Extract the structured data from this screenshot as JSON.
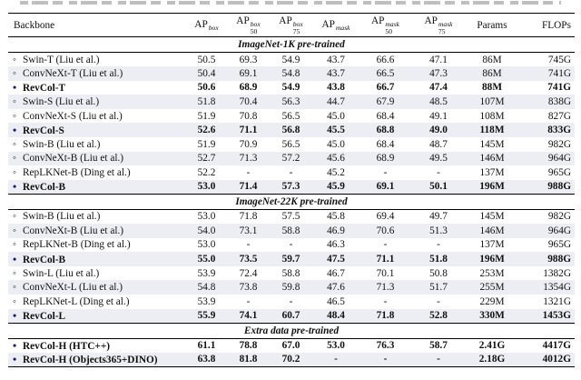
{
  "colors": {
    "row_shade": "#eceef3",
    "bullet_filled": "#15157e"
  },
  "table": {
    "columns": [
      {
        "label": "Backbone"
      },
      {
        "base": "AP",
        "sup": "box",
        "sub": ""
      },
      {
        "base": "AP",
        "sup": "box",
        "sub": "50"
      },
      {
        "base": "AP",
        "sup": "box",
        "sub": "75"
      },
      {
        "base": "AP",
        "sup": "mask",
        "sub": ""
      },
      {
        "base": "AP",
        "sup": "mask",
        "sub": "50"
      },
      {
        "base": "AP",
        "sup": "mask",
        "sub": "75"
      },
      {
        "label": "Params"
      },
      {
        "label": "FLOPs"
      }
    ],
    "sections": [
      {
        "title": "ImageNet-1K pre-trained",
        "rows": [
          {
            "bullet": "open",
            "highlight": false,
            "name": "Swin-T (Liu et al.)",
            "values": [
              "50.5",
              "69.3",
              "54.9",
              "43.7",
              "66.6",
              "47.1",
              "86M",
              "745G"
            ]
          },
          {
            "bullet": "open",
            "highlight": false,
            "name": "ConvNeXt-T (Liu et al.)",
            "values": [
              "50.4",
              "69.1",
              "54.8",
              "43.7",
              "66.5",
              "47.3",
              "86M",
              "741G"
            ]
          },
          {
            "bullet": "filled",
            "highlight": true,
            "name": "RevCol-T",
            "values": [
              "50.6",
              "68.9",
              "54.9",
              "43.8",
              "66.7",
              "47.4",
              "88M",
              "741G"
            ]
          },
          {
            "bullet": "open",
            "highlight": false,
            "name": "Swin-S (Liu et al.)",
            "values": [
              "51.8",
              "70.4",
              "56.3",
              "44.7",
              "67.9",
              "48.5",
              "107M",
              "838G"
            ]
          },
          {
            "bullet": "open",
            "highlight": false,
            "name": "ConvNeXt-S (Liu et al.)",
            "values": [
              "51.9",
              "70.8",
              "56.5",
              "45.0",
              "68.4",
              "49.1",
              "108M",
              "827G"
            ]
          },
          {
            "bullet": "filled",
            "highlight": true,
            "name": "RevCol-S",
            "values": [
              "52.6",
              "71.1",
              "56.8",
              "45.5",
              "68.8",
              "49.0",
              "118M",
              "833G"
            ]
          },
          {
            "bullet": "open",
            "highlight": false,
            "name": "Swin-B (Liu et al.)",
            "values": [
              "51.9",
              "70.9",
              "56.5",
              "45.0",
              "68.4",
              "48.7",
              "145M",
              "982G"
            ]
          },
          {
            "bullet": "open",
            "highlight": false,
            "name": "ConvNeXt-B (Liu et al.)",
            "values": [
              "52.7",
              "71.3",
              "57.2",
              "45.6",
              "68.9",
              "49.5",
              "146M",
              "964G"
            ]
          },
          {
            "bullet": "open",
            "highlight": false,
            "name": "RepLKNet-B (Ding et al.)",
            "values": [
              "52.2",
              "-",
              "-",
              "45.2",
              "-",
              "-",
              "137M",
              "965G"
            ]
          },
          {
            "bullet": "filled",
            "highlight": true,
            "name": "RevCol-B",
            "values": [
              "53.0",
              "71.4",
              "57.3",
              "45.9",
              "69.1",
              "50.1",
              "196M",
              "988G"
            ]
          }
        ]
      },
      {
        "title": "ImageNet-22K pre-trained",
        "rows": [
          {
            "bullet": "open",
            "highlight": false,
            "name": "Swin-B  (Liu et al.)",
            "values": [
              "53.0",
              "71.8",
              "57.5",
              "45.8",
              "69.4",
              "49.7",
              "145M",
              "982G"
            ]
          },
          {
            "bullet": "open",
            "highlight": false,
            "name": "ConvNeXt-B (Liu et al.)",
            "values": [
              "54.0",
              "73.1",
              "58.8",
              "46.9",
              "70.6",
              "51.3",
              "146M",
              "964G"
            ]
          },
          {
            "bullet": "open",
            "highlight": false,
            "name": "RepLKNet-B (Ding et al.)",
            "values": [
              "53.0",
              "-",
              "-",
              "46.3",
              "-",
              "-",
              "137M",
              "965G"
            ]
          },
          {
            "bullet": "filled",
            "highlight": true,
            "name": "RevCol-B",
            "values": [
              "55.0",
              "73.5",
              "59.7",
              "47.5",
              "71.1",
              "51.8",
              "196M",
              "988G"
            ]
          },
          {
            "bullet": "open",
            "highlight": false,
            "name": "Swin-L  (Liu et al.)",
            "values": [
              "53.9",
              "72.4",
              "58.8",
              "46.7",
              "70.1",
              "50.8",
              "253M",
              "1382G"
            ]
          },
          {
            "bullet": "open",
            "highlight": false,
            "name": "ConvNeXt-L (Liu et al.)",
            "values": [
              "54.8",
              "73.8",
              "59.8",
              "47.6",
              "71.3",
              "51.7",
              "255M",
              "1354G"
            ]
          },
          {
            "bullet": "open",
            "highlight": false,
            "name": "RepLKNet-L (Ding et al.)",
            "values": [
              "53.9",
              "-",
              "-",
              "46.5",
              "-",
              "-",
              "229M",
              "1321G"
            ]
          },
          {
            "bullet": "filled",
            "highlight": true,
            "name": "RevCol-L",
            "values": [
              "55.9",
              "74.1",
              "60.7",
              "48.4",
              "71.8",
              "52.8",
              "330M",
              "1453G"
            ]
          }
        ]
      },
      {
        "title": "Extra data pre-trained",
        "rows": [
          {
            "bullet": "filled",
            "highlight": true,
            "name": "RevCol-H (HTC++)",
            "values": [
              "61.1",
              "78.8",
              "67.0",
              "53.0",
              "76.3",
              "58.7",
              "2.41G",
              "4417G"
            ]
          },
          {
            "bullet": "filled",
            "highlight": true,
            "name": "RevCol-H (Objects365+DINO)",
            "values": [
              "63.8",
              "81.8",
              "70.2",
              "-",
              "-",
              "-",
              "2.18G",
              "4012G"
            ]
          }
        ]
      }
    ]
  }
}
